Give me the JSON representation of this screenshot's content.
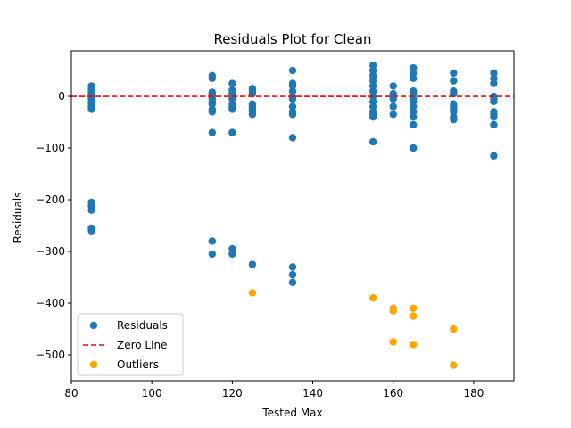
{
  "chart_data": {
    "type": "scatter",
    "title": "Residuals Plot for Clean",
    "xlabel": "Tested Max",
    "ylabel": "Residuals",
    "xlim": [
      80,
      190
    ],
    "ylim": [
      -550,
      88
    ],
    "xticks": [
      80,
      100,
      120,
      140,
      160,
      180
    ],
    "yticks": [
      0,
      -100,
      -200,
      -300,
      -400,
      -500
    ],
    "grid": false,
    "legend_position": "lower-left",
    "series": [
      {
        "name": "Residuals",
        "color": "#1f77b4",
        "marker": "circle",
        "points": [
          [
            85,
            20
          ],
          [
            85,
            15
          ],
          [
            85,
            10
          ],
          [
            85,
            5
          ],
          [
            85,
            0
          ],
          [
            85,
            -5
          ],
          [
            85,
            -10
          ],
          [
            85,
            -15
          ],
          [
            85,
            -20
          ],
          [
            85,
            -25
          ],
          [
            85,
            -205
          ],
          [
            85,
            -212
          ],
          [
            85,
            -220
          ],
          [
            85,
            -255
          ],
          [
            85,
            -260
          ],
          [
            115,
            40
          ],
          [
            115,
            35
          ],
          [
            115,
            8
          ],
          [
            115,
            5
          ],
          [
            115,
            0
          ],
          [
            115,
            -5
          ],
          [
            115,
            -10
          ],
          [
            115,
            -15
          ],
          [
            115,
            -25
          ],
          [
            115,
            -30
          ],
          [
            115,
            -70
          ],
          [
            115,
            -280
          ],
          [
            115,
            -305
          ],
          [
            120,
            25
          ],
          [
            120,
            12
          ],
          [
            120,
            5
          ],
          [
            120,
            -5
          ],
          [
            120,
            -15
          ],
          [
            120,
            -20
          ],
          [
            120,
            -25
          ],
          [
            120,
            -70
          ],
          [
            120,
            -295
          ],
          [
            120,
            -305
          ],
          [
            125,
            15
          ],
          [
            125,
            10
          ],
          [
            125,
            5
          ],
          [
            125,
            -15
          ],
          [
            125,
            -20
          ],
          [
            125,
            -25
          ],
          [
            125,
            -30
          ],
          [
            125,
            -35
          ],
          [
            125,
            -325
          ],
          [
            135,
            50
          ],
          [
            135,
            25
          ],
          [
            135,
            20
          ],
          [
            135,
            10
          ],
          [
            135,
            0
          ],
          [
            135,
            -5
          ],
          [
            135,
            -20
          ],
          [
            135,
            -30
          ],
          [
            135,
            -35
          ],
          [
            135,
            -80
          ],
          [
            135,
            -330
          ],
          [
            135,
            -345
          ],
          [
            135,
            -360
          ],
          [
            155,
            60
          ],
          [
            155,
            50
          ],
          [
            155,
            40
          ],
          [
            155,
            30
          ],
          [
            155,
            20
          ],
          [
            155,
            10
          ],
          [
            155,
            0
          ],
          [
            155,
            -10
          ],
          [
            155,
            -20
          ],
          [
            155,
            -30
          ],
          [
            155,
            -35
          ],
          [
            155,
            -40
          ],
          [
            155,
            -88
          ],
          [
            160,
            20
          ],
          [
            160,
            5
          ],
          [
            160,
            0
          ],
          [
            160,
            -5
          ],
          [
            160,
            -20
          ],
          [
            160,
            -35
          ],
          [
            165,
            55
          ],
          [
            165,
            45
          ],
          [
            165,
            35
          ],
          [
            165,
            10
          ],
          [
            165,
            5
          ],
          [
            165,
            -5
          ],
          [
            165,
            -10
          ],
          [
            165,
            -20
          ],
          [
            165,
            -30
          ],
          [
            165,
            -40
          ],
          [
            165,
            -55
          ],
          [
            165,
            -100
          ],
          [
            175,
            45
          ],
          [
            175,
            30
          ],
          [
            175,
            10
          ],
          [
            175,
            5
          ],
          [
            175,
            -15
          ],
          [
            175,
            -20
          ],
          [
            175,
            -25
          ],
          [
            175,
            -30
          ],
          [
            175,
            -40
          ],
          [
            175,
            -45
          ],
          [
            185,
            45
          ],
          [
            185,
            35
          ],
          [
            185,
            25
          ],
          [
            185,
            0
          ],
          [
            185,
            -5
          ],
          [
            185,
            -10
          ],
          [
            185,
            -30
          ],
          [
            185,
            -35
          ],
          [
            185,
            -40
          ],
          [
            185,
            -55
          ],
          [
            185,
            -115
          ]
        ]
      },
      {
        "name": "Zero Line",
        "color": "#ff0000",
        "style": "dashed",
        "y": 0
      },
      {
        "name": "Outliers",
        "color": "#ffa500",
        "marker": "circle",
        "points": [
          [
            125,
            -380
          ],
          [
            155,
            -390
          ],
          [
            160,
            -410
          ],
          [
            160,
            -415
          ],
          [
            160,
            -475
          ],
          [
            165,
            -410
          ],
          [
            165,
            -425
          ],
          [
            165,
            -480
          ],
          [
            175,
            -450
          ],
          [
            175,
            -520
          ]
        ]
      }
    ]
  }
}
